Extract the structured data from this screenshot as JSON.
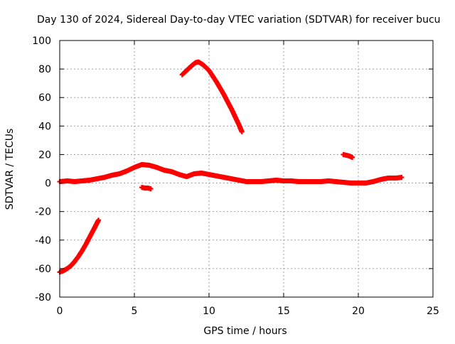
{
  "chart_data": {
    "type": "scatter",
    "title": "Day 130 of 2024, Sidereal Day-to-day VTEC variation (SDTVAR) for receiver bucu",
    "xlabel": "GPS time / hours",
    "ylabel": "SDTVAR / TECUs",
    "xlim": [
      0,
      25
    ],
    "ylim": [
      -80,
      100
    ],
    "xticks": [
      0,
      5,
      10,
      15,
      20,
      25
    ],
    "yticks": [
      -80,
      -60,
      -40,
      -20,
      0,
      20,
      40,
      60,
      80,
      100
    ],
    "grid": true,
    "series_color": "#ff0000",
    "marker": "plus",
    "series": [
      {
        "name": "main",
        "x": [
          0.0,
          0.5,
          1.0,
          1.5,
          2.0,
          2.5,
          3.0,
          3.5,
          4.0,
          4.5,
          5.0,
          5.5,
          6.0,
          6.5,
          7.0,
          7.5,
          8.0,
          8.5,
          9.0,
          9.5,
          10.0,
          10.5,
          11.0,
          11.5,
          12.0,
          12.5,
          13.0,
          13.5,
          14.0,
          14.5,
          15.0,
          15.5,
          16.0,
          16.5,
          17.0,
          17.5,
          18.0,
          18.5,
          19.0,
          19.5,
          20.0,
          20.5,
          21.0,
          21.5,
          22.0,
          22.5,
          22.9
        ],
        "y": [
          1.0,
          1.5,
          1.0,
          1.5,
          2.0,
          3.0,
          4.0,
          5.5,
          6.5,
          8.5,
          11.0,
          13.0,
          12.5,
          11.0,
          9.0,
          8.0,
          6.0,
          4.5,
          6.5,
          7.0,
          6.0,
          5.0,
          4.0,
          3.0,
          2.0,
          1.0,
          1.0,
          1.0,
          1.5,
          2.0,
          1.5,
          1.5,
          1.0,
          1.0,
          1.0,
          1.0,
          1.5,
          1.0,
          0.5,
          0.0,
          0.0,
          0.0,
          1.0,
          2.5,
          3.5,
          3.5,
          4.0
        ]
      },
      {
        "name": "segment-early-negative",
        "x": [
          0.0,
          0.25,
          0.5,
          0.75,
          1.0,
          1.25,
          1.5,
          1.75,
          2.0,
          2.25,
          2.5,
          2.6
        ],
        "y": [
          -62.5,
          -61.5,
          -60.0,
          -58.0,
          -55.0,
          -51.5,
          -47.5,
          -43.0,
          -38.0,
          -33.0,
          -28.0,
          -26.0
        ]
      },
      {
        "name": "segment-small-dip",
        "x": [
          5.5,
          5.7,
          5.9,
          6.1
        ],
        "y": [
          -3.0,
          -3.5,
          -3.5,
          -4.0
        ]
      },
      {
        "name": "segment-high-arc",
        "x": [
          8.2,
          8.5,
          8.8,
          9.1,
          9.3,
          9.6,
          10.0,
          10.5,
          11.0,
          11.5,
          12.0,
          12.2
        ],
        "y": [
          76.0,
          79.0,
          82.0,
          84.5,
          85.0,
          83.0,
          79.0,
          71.0,
          62.0,
          52.0,
          41.0,
          36.0
        ]
      },
      {
        "name": "segment-late-blip",
        "x": [
          19.0,
          19.2,
          19.4,
          19.6
        ],
        "y": [
          20.0,
          19.5,
          19.0,
          18.0
        ]
      }
    ]
  }
}
